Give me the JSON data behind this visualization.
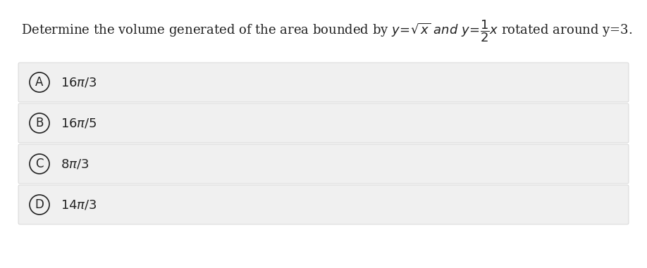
{
  "title": "Determine the volume generated of the area bounded by $y=\\sqrt{x}$ $\\it{and}$ $y=\\dfrac{1}{2}x$ rotated around y=3.",
  "bg_color": "#f0f0f0",
  "white_bg": "#ffffff",
  "options": [
    {
      "label": "A",
      "text": "$16\\pi/3$"
    },
    {
      "label": "B",
      "text": "$16\\pi/5$"
    },
    {
      "label": "C",
      "text": "$8\\pi/3$"
    },
    {
      "label": "D",
      "text": "$14\\pi/3$"
    }
  ],
  "title_fontsize": 13,
  "option_fontsize": 13,
  "label_fontsize": 12,
  "fig_bg": "#ffffff",
  "panel_bg": "#f0f0f0",
  "border_color": "#cccccc",
  "text_color": "#222222"
}
